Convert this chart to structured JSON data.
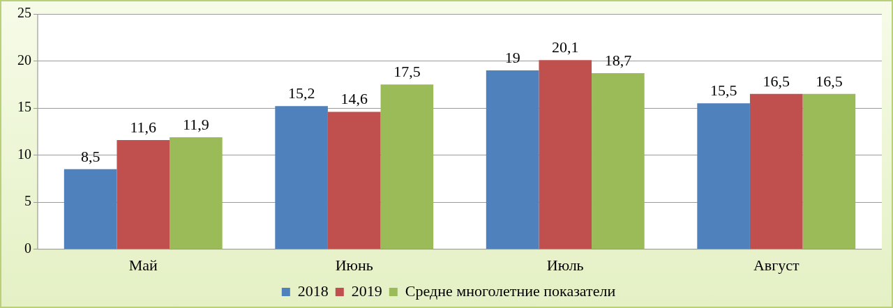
{
  "chart_data": {
    "type": "bar",
    "categories": [
      "Май",
      "Июнь",
      "Июль",
      "Август"
    ],
    "series": [
      {
        "name": "2018",
        "color": "#4f81bd",
        "values": [
          8.5,
          15.2,
          19,
          15.5
        ],
        "value_labels": [
          "8,5",
          "15,2",
          "19",
          "15,5"
        ]
      },
      {
        "name": "2019",
        "color": "#c0504d",
        "values": [
          11.6,
          14.6,
          20.1,
          16.5
        ],
        "value_labels": [
          "11,6",
          "14,6",
          "20,1",
          "16,5"
        ]
      },
      {
        "name": "Средне многолетние показатели",
        "color": "#9bbb59",
        "values": [
          11.9,
          17.5,
          18.7,
          16.5
        ],
        "value_labels": [
          "11,9",
          "17,5",
          "18,7",
          "16,5"
        ]
      }
    ],
    "ylim": [
      0,
      25
    ],
    "yticks": [
      0,
      5,
      10,
      15,
      20,
      25
    ],
    "grid": "y",
    "legend": "bottom"
  }
}
